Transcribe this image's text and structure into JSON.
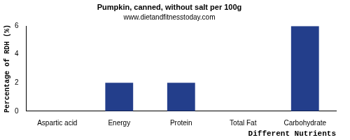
{
  "chart_data": {
    "type": "bar",
    "title": "Pumpkin, canned, without salt per 100g",
    "subtitle": "www.dietandfitnesstoday.com",
    "x_label": "Different Nutrients",
    "y_label": "Percentage of RDH (%)",
    "categories": [
      "Aspartic acid",
      "Energy",
      "Protein",
      "Total Fat",
      "Carbohydrate"
    ],
    "values": [
      0,
      2,
      2,
      0,
      6
    ],
    "color": "#233e8b",
    "ylim": [
      0,
      6
    ],
    "yticks": [
      0,
      2,
      4,
      6
    ],
    "grid": false
  }
}
